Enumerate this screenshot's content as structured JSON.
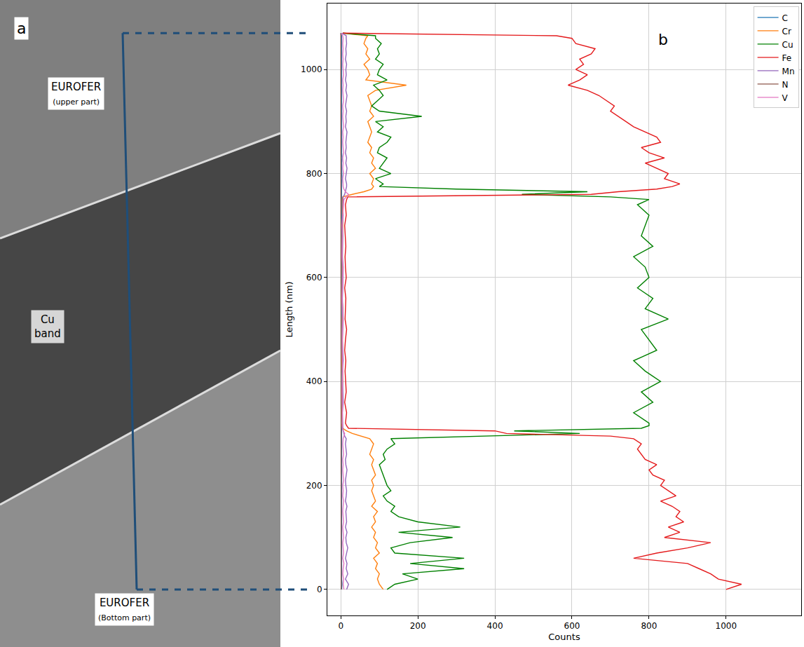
{
  "chart_data": {
    "type": "line",
    "panel_label": "b",
    "x_label": "Counts",
    "y_label": "Length (nm)",
    "xlim": [
      -35,
      1195
    ],
    "xticks": [
      0,
      200,
      400,
      600,
      800,
      1000
    ],
    "ylim": [
      -50,
      1127
    ],
    "yticks": [
      0,
      200,
      400,
      600,
      800,
      1000
    ],
    "grid": true,
    "legend": "upper right",
    "y": [
      0,
      10,
      20,
      30,
      40,
      50,
      60,
      70,
      80,
      90,
      100,
      110,
      120,
      130,
      140,
      150,
      160,
      170,
      180,
      190,
      200,
      210,
      220,
      230,
      240,
      250,
      260,
      270,
      280,
      290,
      295,
      300,
      305,
      310,
      315,
      320,
      340,
      360,
      380,
      400,
      420,
      440,
      460,
      480,
      500,
      520,
      540,
      560,
      580,
      600,
      620,
      640,
      660,
      680,
      700,
      720,
      740,
      750,
      755,
      760,
      765,
      770,
      775,
      780,
      790,
      800,
      810,
      820,
      830,
      840,
      850,
      860,
      870,
      880,
      890,
      900,
      910,
      920,
      930,
      940,
      950,
      960,
      970,
      980,
      990,
      1000,
      1010,
      1020,
      1030,
      1040,
      1050,
      1060,
      1065,
      1070
    ],
    "series": [
      {
        "name": "C",
        "color": "#1f77b4",
        "values": [
          2,
          3,
          2,
          2,
          3,
          2,
          2,
          2,
          3,
          2,
          2,
          2,
          3,
          2,
          2,
          2,
          2,
          3,
          2,
          2,
          2,
          3,
          2,
          2,
          2,
          2,
          3,
          2,
          2,
          2,
          2,
          2,
          2,
          2,
          2,
          1,
          2,
          1,
          1,
          2,
          1,
          1,
          1,
          2,
          1,
          1,
          2,
          1,
          1,
          1,
          2,
          1,
          1,
          2,
          1,
          1,
          1,
          1,
          2,
          2,
          2,
          2,
          2,
          2,
          3,
          2,
          2,
          2,
          3,
          2,
          2,
          2,
          2,
          3,
          2,
          2,
          2,
          2,
          3,
          2,
          2,
          2,
          2,
          3,
          2,
          2,
          2,
          2,
          3,
          2,
          2,
          2,
          2,
          0
        ]
      },
      {
        "name": "Cr",
        "color": "#ff7f0e",
        "values": [
          110,
          100,
          95,
          100,
          90,
          95,
          85,
          100,
          90,
          95,
          85,
          90,
          80,
          90,
          85,
          95,
          80,
          90,
          85,
          80,
          85,
          80,
          90,
          85,
          80,
          85,
          75,
          80,
          85,
          75,
          50,
          30,
          15,
          5,
          3,
          4,
          3,
          4,
          3,
          5,
          4,
          3,
          4,
          4,
          3,
          4,
          5,
          3,
          4,
          4,
          3,
          4,
          3,
          4,
          5,
          4,
          4,
          4,
          5,
          30,
          60,
          80,
          85,
          80,
          85,
          75,
          90,
          80,
          85,
          75,
          80,
          70,
          75,
          80,
          75,
          70,
          85,
          75,
          80,
          75,
          70,
          90,
          170,
          65,
          75,
          70,
          60,
          75,
          65,
          70,
          60,
          65,
          70,
          5
        ]
      },
      {
        "name": "Cu",
        "color": "#008000",
        "values": [
          120,
          140,
          200,
          160,
          320,
          180,
          320,
          140,
          130,
          180,
          290,
          150,
          310,
          200,
          150,
          130,
          140,
          120,
          110,
          130,
          120,
          115,
          110,
          105,
          100,
          115,
          110,
          120,
          140,
          130,
          380,
          620,
          450,
          780,
          800,
          800,
          760,
          810,
          780,
          830,
          790,
          760,
          820,
          800,
          780,
          850,
          790,
          810,
          770,
          800,
          790,
          760,
          810,
          780,
          790,
          800,
          770,
          800,
          700,
          470,
          640,
          300,
          100,
          110,
          90,
          130,
          100,
          110,
          120,
          95,
          100,
          120,
          130,
          95,
          110,
          90,
          210,
          100,
          80,
          95,
          110,
          100,
          85,
          120,
          95,
          100,
          110,
          90,
          100,
          95,
          105,
          90,
          90,
          5
        ]
      },
      {
        "name": "Fe",
        "color": "#e41a1c",
        "values": [
          1000,
          1040,
          980,
          960,
          930,
          900,
          760,
          820,
          900,
          960,
          840,
          880,
          850,
          890,
          870,
          880,
          860,
          830,
          870,
          850,
          830,
          840,
          810,
          800,
          820,
          790,
          780,
          770,
          780,
          760,
          700,
          430,
          400,
          20,
          15,
          12,
          15,
          10,
          14,
          12,
          11,
          13,
          10,
          12,
          15,
          11,
          12,
          13,
          10,
          14,
          12,
          11,
          13,
          12,
          10,
          14,
          12,
          15,
          18,
          650,
          720,
          820,
          860,
          880,
          840,
          850,
          820,
          790,
          840,
          800,
          780,
          830,
          820,
          790,
          760,
          740,
          720,
          700,
          710,
          690,
          670,
          640,
          590,
          620,
          640,
          610,
          630,
          620,
          650,
          660,
          610,
          600,
          560,
          5
        ]
      },
      {
        "name": "Mn",
        "color": "#9467bd",
        "values": [
          15,
          20,
          12,
          18,
          14,
          16,
          12,
          15,
          18,
          14,
          13,
          16,
          12,
          15,
          14,
          13,
          16,
          12,
          14,
          15,
          13,
          12,
          14,
          16,
          13,
          12,
          15,
          13,
          12,
          14,
          10,
          8,
          6,
          5,
          5,
          5,
          4,
          6,
          5,
          5,
          4,
          6,
          5,
          4,
          5,
          6,
          5,
          4,
          5,
          5,
          6,
          4,
          5,
          5,
          4,
          6,
          5,
          5,
          6,
          10,
          12,
          14,
          15,
          15,
          12,
          14,
          16,
          13,
          15,
          12,
          14,
          13,
          15,
          16,
          12,
          14,
          13,
          15,
          12,
          14,
          16,
          13,
          15,
          12,
          14,
          13,
          15,
          12,
          14,
          13,
          15,
          14,
          14,
          3
        ]
      },
      {
        "name": "N",
        "color": "#8c564b",
        "values": [
          1,
          1,
          1,
          1,
          1,
          1,
          1,
          1,
          1,
          1,
          1,
          1,
          1,
          1,
          1,
          1,
          1,
          1,
          1,
          1,
          1,
          1,
          1,
          1,
          1,
          1,
          1,
          1,
          1,
          1,
          1,
          1,
          1,
          1,
          1,
          1,
          1,
          1,
          1,
          1,
          1,
          1,
          1,
          1,
          1,
          1,
          1,
          1,
          1,
          1,
          1,
          1,
          1,
          1,
          1,
          1,
          1,
          1,
          1,
          1,
          1,
          1,
          1,
          1,
          1,
          1,
          1,
          1,
          1,
          1,
          1,
          1,
          1,
          1,
          1,
          1,
          1,
          1,
          1,
          1,
          1,
          1,
          1,
          1,
          1,
          1,
          1,
          1,
          1,
          1,
          1,
          1,
          1,
          0
        ]
      },
      {
        "name": "V",
        "color": "#e377c2",
        "values": [
          8,
          6,
          7,
          5,
          6,
          8,
          5,
          7,
          6,
          5,
          7,
          6,
          5,
          7,
          6,
          5,
          6,
          7,
          5,
          6,
          5,
          7,
          6,
          5,
          6,
          5,
          7,
          6,
          5,
          6,
          8,
          10,
          6,
          4,
          4,
          4,
          5,
          4,
          3,
          4,
          5,
          4,
          4,
          3,
          4,
          5,
          4,
          3,
          4,
          4,
          5,
          3,
          4,
          4,
          3,
          5,
          6,
          8,
          14,
          20,
          12,
          8,
          6,
          6,
          5,
          7,
          5,
          6,
          5,
          7,
          6,
          5,
          6,
          5,
          7,
          6,
          5,
          6,
          5,
          7,
          6,
          5,
          6,
          5,
          7,
          6,
          5,
          6,
          5,
          6,
          5,
          6,
          5,
          2
        ]
      }
    ]
  },
  "image_panel": {
    "label": "a",
    "regions": [
      {
        "label": "EUROFER",
        "sublabel": "(upper part)"
      },
      {
        "label": "Cu band"
      },
      {
        "label": "EUROFER",
        "sublabel": "(Bottom part)"
      }
    ]
  }
}
